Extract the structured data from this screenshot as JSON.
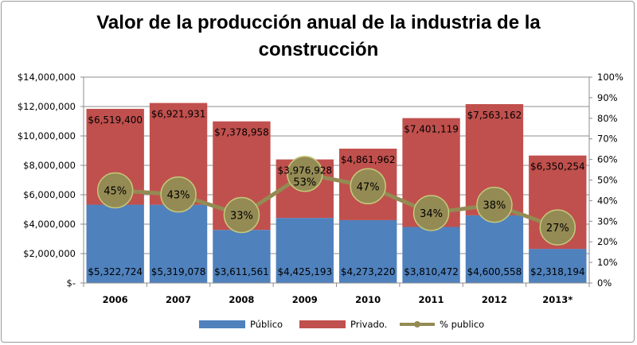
{
  "chart_data": {
    "type": "bar",
    "stacked": true,
    "title": "Valor de la producción anual de la industria de la construcción",
    "categories": [
      "2006",
      "2007",
      "2008",
      "2009",
      "2010",
      "2011",
      "2012",
      "2013*"
    ],
    "series": [
      {
        "name": "Público",
        "type": "bar",
        "axis": "left",
        "color": "#4f81bd",
        "values": [
          5322724,
          5319078,
          3611561,
          4425193,
          4273220,
          3810472,
          4600558,
          2318194
        ],
        "labels": [
          "$5,322,724",
          "$5,319,078",
          "$3,611,561",
          "$4,425,193",
          "$4,273,220",
          "$3,810,472",
          "$4,600,558",
          "$2,318,194"
        ]
      },
      {
        "name": "Privado.",
        "type": "bar",
        "axis": "left",
        "color": "#c0504d",
        "values": [
          6519400,
          6921931,
          7378958,
          3976928,
          4861962,
          7401119,
          7563162,
          6350254
        ],
        "labels": [
          "$6,519,400",
          "$6,921,931",
          "$7,378,958",
          "$3,976,928",
          "$4,861,962",
          "$7,401,119",
          "$7,563,162",
          "$6,350,254"
        ]
      },
      {
        "name": "% publico",
        "type": "line",
        "axis": "right",
        "color": "#948a54",
        "values": [
          45,
          43,
          33,
          53,
          47,
          34,
          38,
          27
        ],
        "labels": [
          "45%",
          "43%",
          "33%",
          "53%",
          "47%",
          "34%",
          "38%",
          "27%"
        ]
      }
    ],
    "y_left": {
      "range": [
        0,
        14000000
      ],
      "ticks": [
        "$-",
        "$2,000,000",
        "$4,000,000",
        "$6,000,000",
        "$8,000,000",
        "$10,000,000",
        "$12,000,000",
        "$14,000,000"
      ]
    },
    "y_right": {
      "range": [
        0,
        100
      ],
      "ticks": [
        "0%",
        "10%",
        "20%",
        "30%",
        "40%",
        "50%",
        "60%",
        "70%",
        "80%",
        "90%",
        "100%"
      ]
    },
    "grid": true,
    "legend": "bottom"
  }
}
